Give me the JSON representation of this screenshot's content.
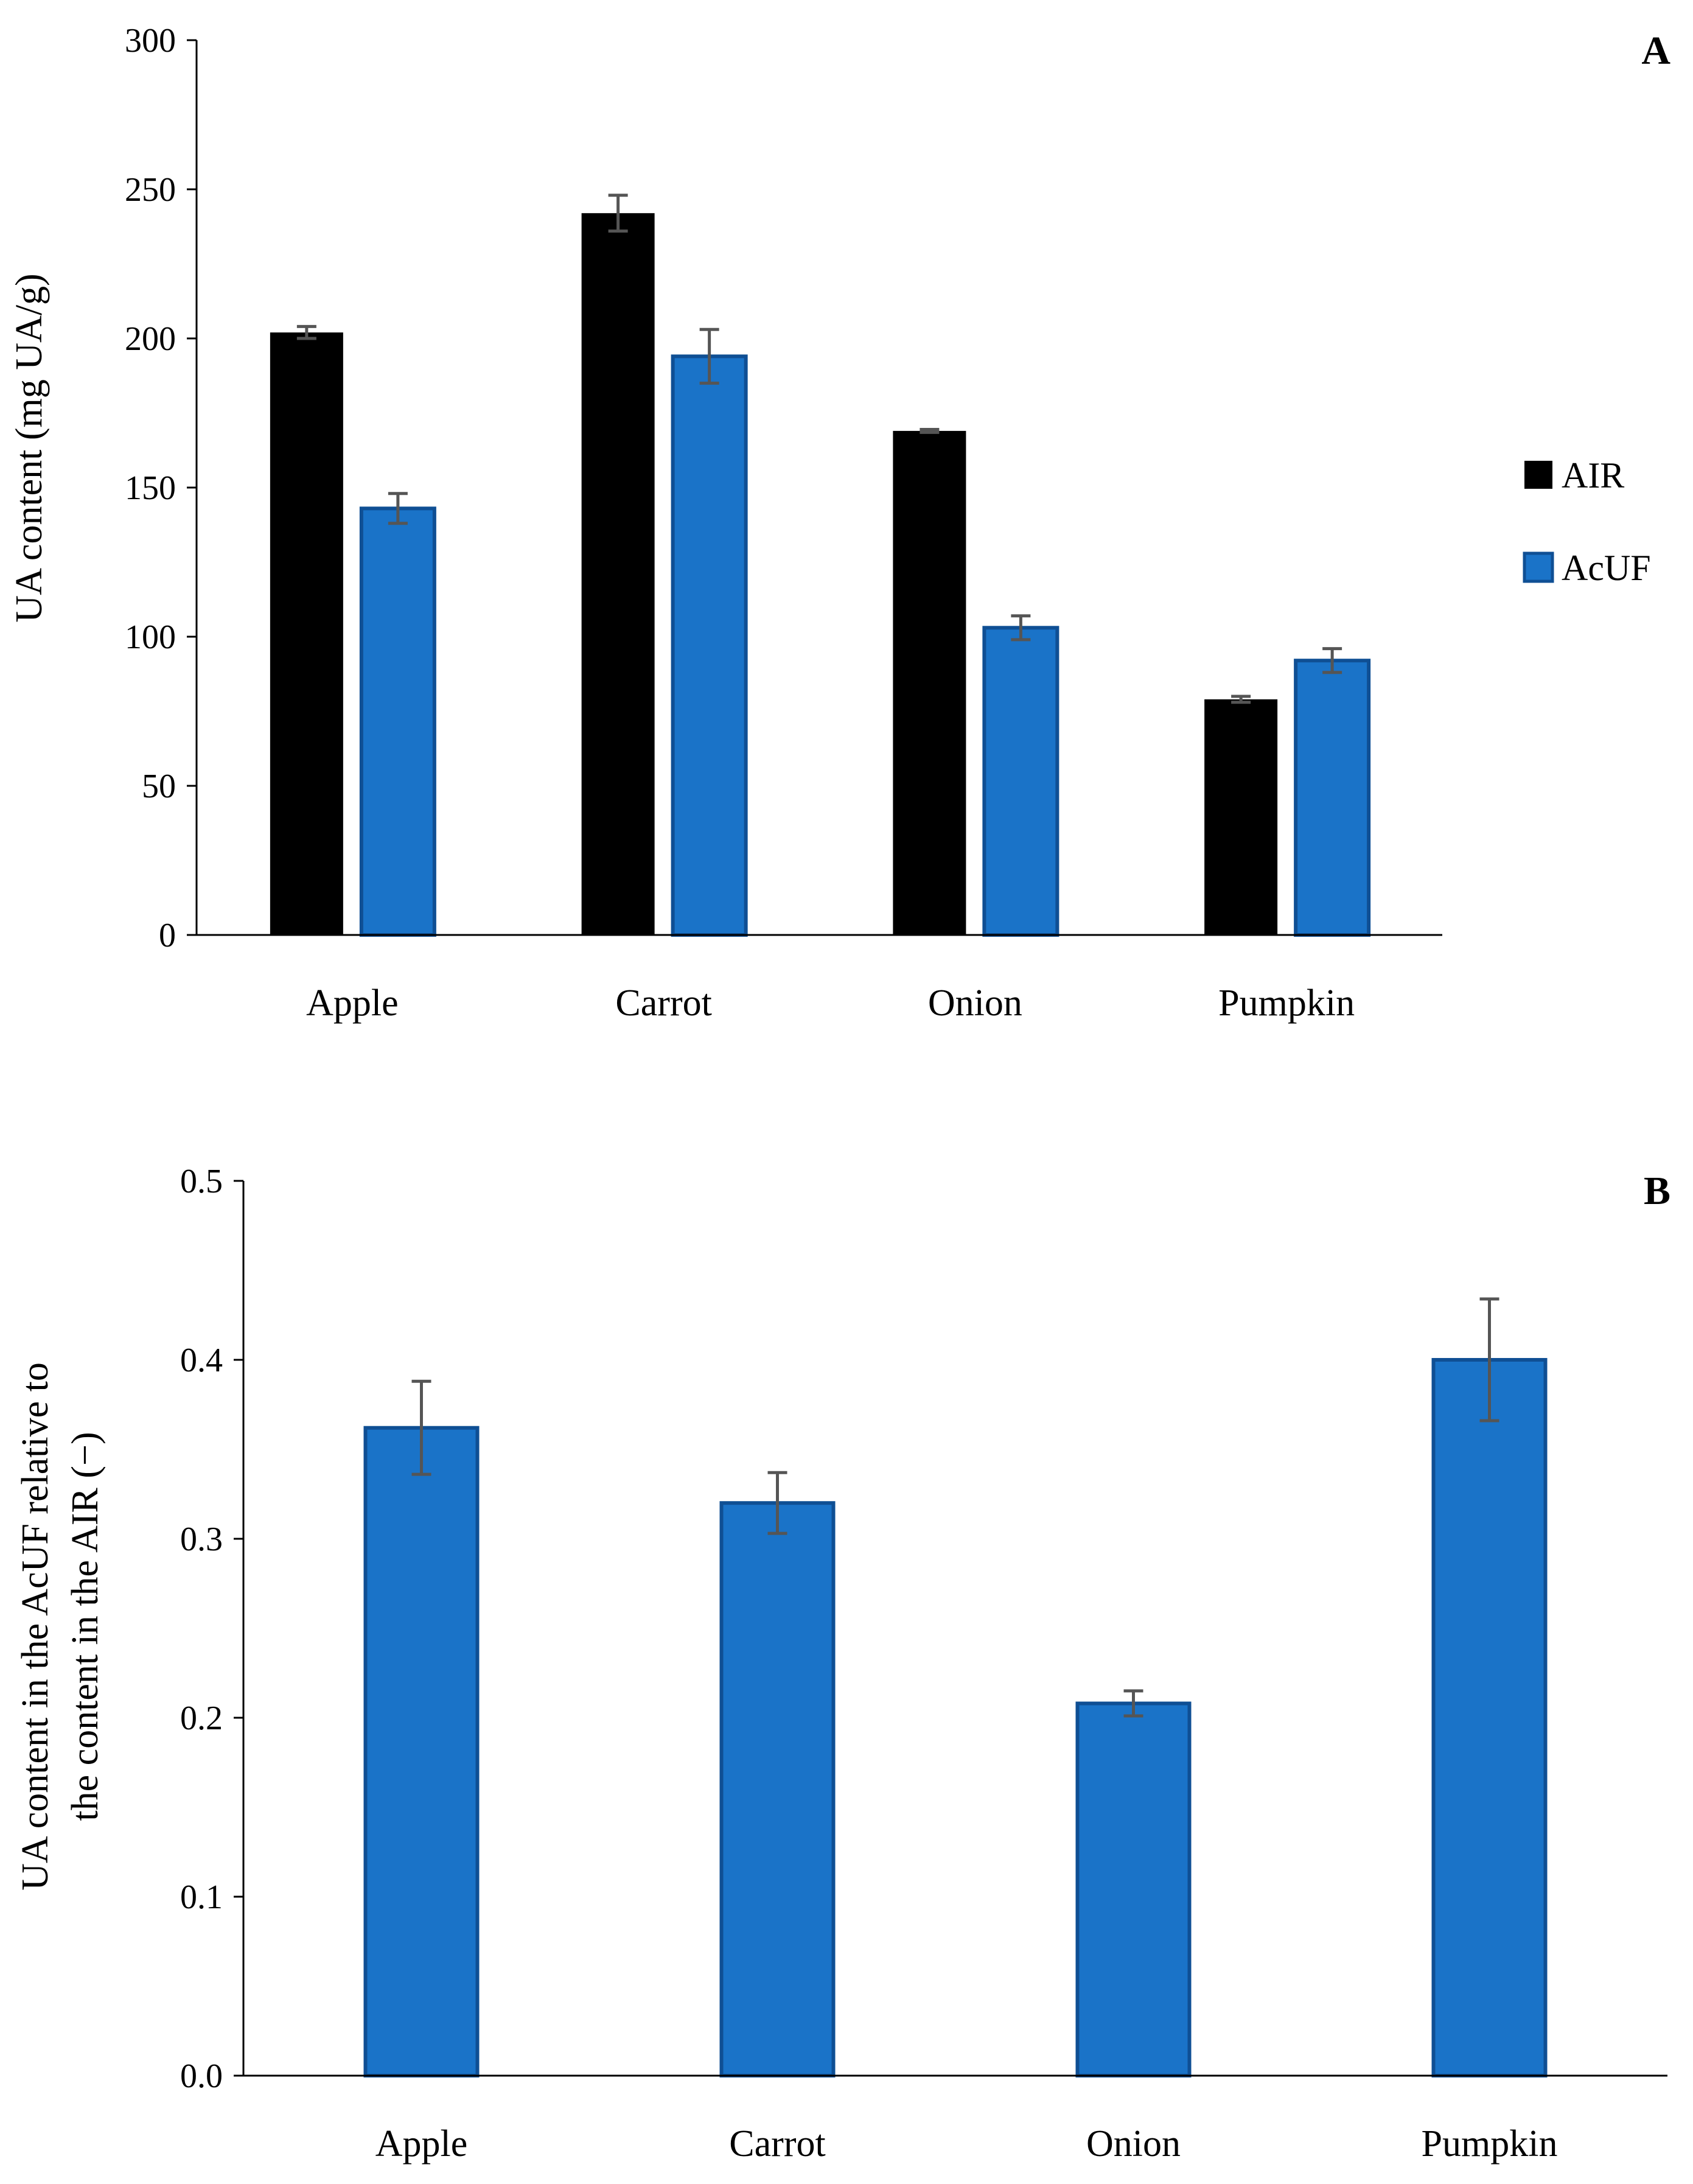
{
  "colors": {
    "air": "#000000",
    "acuf": "#1a73c8",
    "acuf_edge": "#0f4f94",
    "error_bar": "#555555"
  },
  "chart_data": [
    {
      "panel": "A",
      "type": "bar",
      "categories": [
        "Apple",
        "Carrot",
        "Onion",
        "Pumpkin"
      ],
      "series": [
        {
          "name": "AIR",
          "values": [
            202,
            242,
            169,
            79
          ],
          "errors": [
            2,
            6,
            0.5,
            1
          ]
        },
        {
          "name": "AcUF",
          "values": [
            143,
            194,
            103,
            92
          ],
          "errors": [
            5,
            9,
            4,
            4
          ]
        }
      ],
      "title": "",
      "xlabel": "",
      "ylabel": "UA content (mg UA/g)",
      "ylim": [
        0,
        300
      ],
      "yticks": [
        "0",
        "50",
        "100",
        "150",
        "200",
        "250",
        "300"
      ],
      "grid": false,
      "legend": "right"
    },
    {
      "panel": "B",
      "type": "bar",
      "categories": [
        "Apple",
        "Carrot",
        "Onion",
        "Pumpkin"
      ],
      "series": [
        {
          "name": "AcUF/AIR",
          "values": [
            0.362,
            0.32,
            0.208,
            0.4
          ],
          "errors": [
            0.026,
            0.017,
            0.007,
            0.034
          ]
        }
      ],
      "title": "",
      "xlabel": "",
      "ylabel_lines": [
        "UA content in the AcUF relative to",
        "the content in the AIR (−)"
      ],
      "ylim": [
        0,
        0.5
      ],
      "yticks": [
        "0.0",
        "0.1",
        "0.2",
        "0.3",
        "0.4",
        "0.5"
      ],
      "grid": false,
      "legend": "none"
    }
  ]
}
